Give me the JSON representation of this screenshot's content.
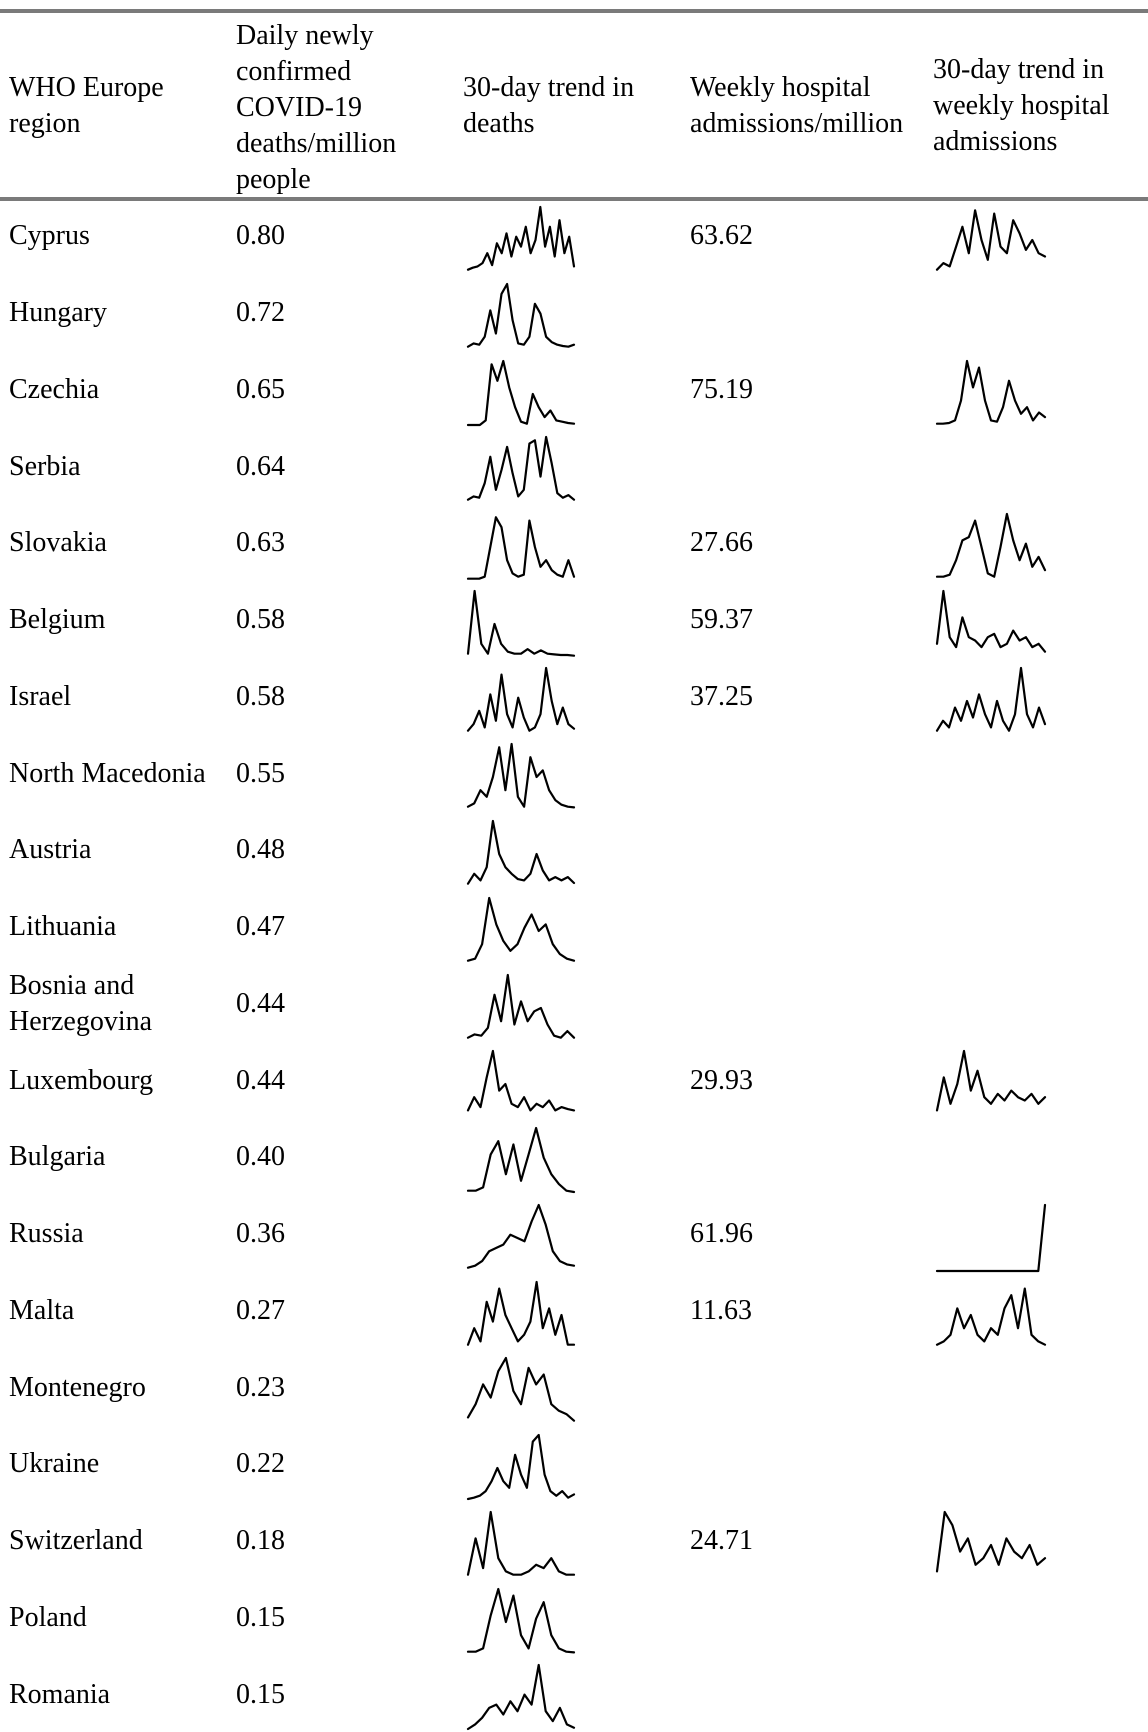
{
  "table": {
    "headers": {
      "region": "WHO Europe region",
      "deaths": "Daily newly confirmed COVID-19 deaths/million people",
      "deaths_trend": "30-day trend in deaths",
      "admissions": "Weekly hospital admissions/million",
      "admissions_trend": "30-day trend in weekly hospital admissions"
    },
    "header_lines": {
      "region": [
        "WHO Europe",
        "region"
      ],
      "deaths": [
        "Daily newly",
        "confirmed",
        "COVID-19",
        "deaths/million",
        "people"
      ],
      "deaths_trend": [
        "30-day trend in",
        "deaths"
      ],
      "admissions": [
        "Weekly hospital",
        "admissions/million"
      ],
      "admissions_trend": [
        "30-day trend in",
        "weekly hospital",
        "admissions"
      ]
    },
    "rows": [
      {
        "region": [
          "Cyprus"
        ],
        "deaths": "0.80",
        "admissions": "63.62",
        "death_trend": [
          0.05,
          0.08,
          0.1,
          0.15,
          0.3,
          0.12,
          0.45,
          0.3,
          0.6,
          0.25,
          0.55,
          0.4,
          0.7,
          0.3,
          0.5,
          1.0,
          0.4,
          0.7,
          0.25,
          0.8,
          0.3,
          0.55,
          0.1
        ],
        "adm_trend": [
          0.05,
          0.15,
          0.1,
          0.4,
          0.7,
          0.3,
          0.95,
          0.5,
          0.2,
          0.9,
          0.4,
          0.3,
          0.8,
          0.6,
          0.35,
          0.5,
          0.3,
          0.25
        ]
      },
      {
        "region": [
          "Hungary"
        ],
        "deaths": "0.72",
        "admissions": "",
        "death_trend": [
          0.05,
          0.1,
          0.08,
          0.2,
          0.6,
          0.25,
          0.85,
          1.0,
          0.45,
          0.1,
          0.08,
          0.2,
          0.7,
          0.55,
          0.2,
          0.12,
          0.08,
          0.06,
          0.05,
          0.08
        ],
        "adm_trend": []
      },
      {
        "region": [
          "Czechia"
        ],
        "deaths": "0.65",
        "admissions": "75.19",
        "death_trend": [
          0.03,
          0.03,
          0.03,
          0.1,
          0.95,
          0.7,
          1.0,
          0.6,
          0.3,
          0.08,
          0.05,
          0.5,
          0.3,
          0.15,
          0.25,
          0.1,
          0.08,
          0.06,
          0.05
        ],
        "adm_trend": [
          0.05,
          0.05,
          0.06,
          0.1,
          0.4,
          1.0,
          0.6,
          0.9,
          0.4,
          0.1,
          0.08,
          0.3,
          0.7,
          0.4,
          0.2,
          0.3,
          0.1,
          0.22,
          0.15
        ]
      },
      {
        "region": [
          "Serbia"
        ],
        "deaths": "0.64",
        "admissions": "",
        "death_trend": [
          0.05,
          0.1,
          0.08,
          0.3,
          0.7,
          0.2,
          0.5,
          0.85,
          0.45,
          0.1,
          0.2,
          0.9,
          0.95,
          0.4,
          1.0,
          0.6,
          0.15,
          0.08,
          0.12,
          0.05
        ],
        "adm_trend": []
      },
      {
        "region": [
          "Slovakia"
        ],
        "deaths": "0.63",
        "admissions": "27.66",
        "death_trend": [
          0.02,
          0.02,
          0.02,
          0.05,
          0.5,
          0.95,
          0.8,
          0.3,
          0.1,
          0.05,
          0.08,
          0.9,
          0.5,
          0.2,
          0.3,
          0.15,
          0.08,
          0.05,
          0.3,
          0.05
        ],
        "adm_trend": [
          0.05,
          0.05,
          0.08,
          0.3,
          0.6,
          0.65,
          0.9,
          0.5,
          0.1,
          0.05,
          0.5,
          1.0,
          0.6,
          0.3,
          0.55,
          0.2,
          0.35,
          0.15
        ]
      },
      {
        "region": [
          "Belgium"
        ],
        "deaths": "0.58",
        "admissions": "59.37",
        "death_trend": [
          0.05,
          1.0,
          0.2,
          0.05,
          0.5,
          0.2,
          0.08,
          0.05,
          0.05,
          0.12,
          0.05,
          0.1,
          0.05,
          0.04,
          0.03,
          0.03,
          0.02
        ],
        "adm_trend": [
          0.2,
          1.0,
          0.3,
          0.15,
          0.6,
          0.3,
          0.25,
          0.15,
          0.3,
          0.35,
          0.15,
          0.2,
          0.4,
          0.25,
          0.3,
          0.15,
          0.2,
          0.08
        ]
      },
      {
        "region": [
          "Israel"
        ],
        "deaths": "0.58",
        "admissions": "37.25",
        "death_trend": [
          0.05,
          0.15,
          0.35,
          0.1,
          0.6,
          0.2,
          0.9,
          0.3,
          0.1,
          0.55,
          0.25,
          0.05,
          0.1,
          0.3,
          1.0,
          0.5,
          0.15,
          0.4,
          0.15,
          0.08
        ],
        "adm_trend": [
          0.05,
          0.2,
          0.1,
          0.4,
          0.2,
          0.5,
          0.25,
          0.6,
          0.3,
          0.1,
          0.5,
          0.2,
          0.05,
          0.3,
          1.0,
          0.3,
          0.1,
          0.4,
          0.15
        ]
      },
      {
        "region": [
          "North Macedonia"
        ],
        "deaths": "0.55",
        "admissions": "",
        "death_trend": [
          0.05,
          0.1,
          0.3,
          0.2,
          0.5,
          0.95,
          0.3,
          1.0,
          0.2,
          0.05,
          0.8,
          0.5,
          0.6,
          0.3,
          0.15,
          0.08,
          0.05,
          0.04
        ],
        "adm_trend": []
      },
      {
        "region": [
          "Austria"
        ],
        "deaths": "0.48",
        "admissions": "",
        "death_trend": [
          0.05,
          0.2,
          0.1,
          0.3,
          1.0,
          0.5,
          0.3,
          0.2,
          0.12,
          0.1,
          0.2,
          0.5,
          0.25,
          0.1,
          0.15,
          0.1,
          0.15,
          0.06
        ],
        "adm_trend": []
      },
      {
        "region": [
          "Lithuania"
        ],
        "deaths": "0.47",
        "admissions": "",
        "death_trend": [
          0.05,
          0.08,
          0.3,
          1.0,
          0.6,
          0.35,
          0.2,
          0.3,
          0.55,
          0.75,
          0.5,
          0.6,
          0.3,
          0.15,
          0.08,
          0.05
        ],
        "adm_trend": []
      },
      {
        "region": [
          "Bosnia and",
          "Herzegovina"
        ],
        "deaths": "0.44",
        "admissions": "",
        "death_trend": [
          0.05,
          0.1,
          0.08,
          0.2,
          0.7,
          0.3,
          1.0,
          0.25,
          0.6,
          0.3,
          0.45,
          0.5,
          0.25,
          0.08,
          0.05,
          0.15,
          0.05
        ],
        "adm_trend": []
      },
      {
        "region": [
          "Luxembourg"
        ],
        "deaths": "0.44",
        "admissions": "29.93",
        "death_trend": [
          0.1,
          0.3,
          0.15,
          0.6,
          1.0,
          0.4,
          0.5,
          0.2,
          0.15,
          0.3,
          0.1,
          0.2,
          0.15,
          0.25,
          0.1,
          0.15,
          0.12,
          0.1
        ],
        "adm_trend": [
          0.1,
          0.6,
          0.2,
          0.5,
          1.0,
          0.4,
          0.7,
          0.3,
          0.2,
          0.35,
          0.25,
          0.4,
          0.3,
          0.25,
          0.35,
          0.2,
          0.3
        ]
      },
      {
        "region": [
          "Bulgaria"
        ],
        "deaths": "0.40",
        "admissions": "",
        "death_trend": [
          0.05,
          0.05,
          0.1,
          0.6,
          0.8,
          0.3,
          0.75,
          0.2,
          0.6,
          1.0,
          0.55,
          0.3,
          0.15,
          0.05,
          0.03
        ],
        "adm_trend": []
      },
      {
        "region": [
          "Russia"
        ],
        "deaths": "0.36",
        "admissions": "61.96",
        "death_trend": [
          0.05,
          0.08,
          0.15,
          0.3,
          0.35,
          0.4,
          0.55,
          0.5,
          0.45,
          0.75,
          1.0,
          0.7,
          0.3,
          0.15,
          0.1,
          0.08
        ],
        "adm_trend": [
          0.0,
          0.0,
          0.0,
          0.0,
          0.0,
          0.0,
          0.0,
          0.0,
          0.0,
          0.0,
          0.0,
          0.0,
          0.0,
          0.0,
          0.0,
          0.0,
          1.0
        ]
      },
      {
        "region": [
          "Malta"
        ],
        "deaths": "0.27",
        "admissions": "11.63",
        "death_trend": [
          0.05,
          0.3,
          0.1,
          0.7,
          0.4,
          0.9,
          0.5,
          0.3,
          0.1,
          0.2,
          0.4,
          1.0,
          0.3,
          0.6,
          0.2,
          0.5,
          0.05,
          0.05
        ],
        "adm_trend": [
          0.05,
          0.1,
          0.2,
          0.6,
          0.3,
          0.5,
          0.2,
          0.1,
          0.3,
          0.2,
          0.6,
          0.8,
          0.3,
          0.9,
          0.2,
          0.1,
          0.05
        ]
      },
      {
        "region": [
          "Montenegro"
        ],
        "deaths": "0.23",
        "admissions": "",
        "death_trend": [
          0.1,
          0.3,
          0.6,
          0.4,
          0.8,
          1.0,
          0.5,
          0.3,
          0.85,
          0.6,
          0.75,
          0.3,
          0.2,
          0.15,
          0.05
        ],
        "adm_trend": []
      },
      {
        "region": [
          "Ukraine"
        ],
        "deaths": "0.22",
        "admissions": "",
        "death_trend": [
          0.03,
          0.05,
          0.08,
          0.15,
          0.3,
          0.5,
          0.3,
          0.2,
          0.7,
          0.4,
          0.2,
          0.9,
          1.0,
          0.4,
          0.15,
          0.08,
          0.15,
          0.05,
          0.1
        ],
        "adm_trend": []
      },
      {
        "region": [
          "Switzerland"
        ],
        "deaths": "0.18",
        "admissions": "24.71",
        "death_trend": [
          0.05,
          0.6,
          0.15,
          1.0,
          0.3,
          0.1,
          0.05,
          0.05,
          0.1,
          0.2,
          0.15,
          0.3,
          0.1,
          0.05,
          0.05
        ],
        "adm_trend": [
          0.1,
          1.0,
          0.8,
          0.4,
          0.6,
          0.2,
          0.3,
          0.5,
          0.2,
          0.6,
          0.4,
          0.3,
          0.5,
          0.2,
          0.3
        ]
      },
      {
        "region": [
          "Poland"
        ],
        "deaths": "0.15",
        "admissions": "",
        "death_trend": [
          0.05,
          0.05,
          0.1,
          0.6,
          1.0,
          0.5,
          0.9,
          0.3,
          0.1,
          0.55,
          0.8,
          0.3,
          0.1,
          0.05,
          0.04
        ],
        "adm_trend": []
      },
      {
        "region": [
          "Romania"
        ],
        "deaths": "0.15",
        "admissions": "",
        "death_trend": [
          0.03,
          0.1,
          0.2,
          0.35,
          0.4,
          0.25,
          0.45,
          0.3,
          0.55,
          0.4,
          1.0,
          0.3,
          0.15,
          0.35,
          0.1,
          0.05
        ],
        "adm_trend": []
      }
    ]
  }
}
